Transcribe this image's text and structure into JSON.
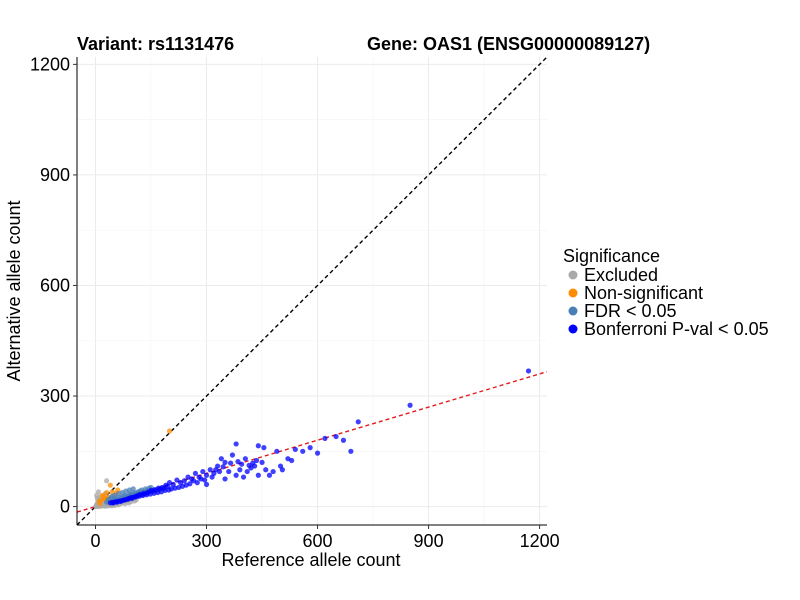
{
  "chart_data": {
    "type": "scatter",
    "title_left": "Variant: rs1131476",
    "title_right": "Gene: OAS1 (ENSG00000089127)",
    "xlabel": "Reference allele count",
    "ylabel": "Alternative allele count",
    "xlim": [
      -50,
      1220
    ],
    "ylim": [
      -50,
      1220
    ],
    "xticks": [
      0,
      300,
      600,
      900,
      1200
    ],
    "yticks": [
      0,
      300,
      600,
      900,
      1200
    ],
    "xtick_labels": [
      "0",
      "300",
      "600",
      "900",
      "1200"
    ],
    "ytick_labels": [
      "0",
      "300",
      "600",
      "900",
      "1200"
    ],
    "reference_lines": [
      {
        "name": "identity",
        "slope": 1.0,
        "intercept": 0,
        "color": "#000000",
        "style": "dashed"
      },
      {
        "name": "fit",
        "slope": 0.3,
        "intercept": 0,
        "color": "#e41a1c",
        "style": "dashed"
      }
    ],
    "legend": {
      "title": "Significance",
      "entries": [
        {
          "label": "Excluded",
          "color": "#a9a9a9"
        },
        {
          "label": "Non-significant",
          "color": "#ff8c00"
        },
        {
          "label": "FDR < 0.05",
          "color": "#4a7fb5"
        },
        {
          "label": "Bonferroni P-val < 0.05",
          "color": "#0000ff"
        }
      ]
    },
    "series": [
      {
        "name": "Excluded",
        "color": "#a9a9a9",
        "points": [
          [
            2,
            3
          ],
          [
            4,
            8
          ],
          [
            6,
            2
          ],
          [
            8,
            12
          ],
          [
            10,
            5
          ],
          [
            12,
            15
          ],
          [
            5,
            22
          ],
          [
            15,
            8
          ],
          [
            18,
            3
          ],
          [
            20,
            10
          ],
          [
            3,
            30
          ],
          [
            7,
            18
          ],
          [
            25,
            6
          ],
          [
            28,
            12
          ],
          [
            30,
            4
          ],
          [
            33,
            9
          ],
          [
            36,
            14
          ],
          [
            40,
            7
          ],
          [
            42,
            11
          ],
          [
            45,
            5
          ],
          [
            48,
            16
          ],
          [
            50,
            8
          ],
          [
            55,
            12
          ],
          [
            58,
            6
          ],
          [
            60,
            10
          ],
          [
            65,
            14
          ],
          [
            70,
            9
          ],
          [
            8,
            40
          ],
          [
            12,
            26
          ],
          [
            22,
            20
          ],
          [
            26,
            35
          ],
          [
            35,
            20
          ],
          [
            16,
            6
          ],
          [
            24,
            2
          ],
          [
            32,
            2
          ],
          [
            38,
            3
          ],
          [
            52,
            3
          ],
          [
            63,
            5
          ],
          [
            75,
            12
          ],
          [
            80,
            8
          ],
          [
            85,
            16
          ],
          [
            90,
            10
          ],
          [
            95,
            13
          ],
          [
            100,
            20
          ],
          [
            105,
            15
          ],
          [
            110,
            18
          ],
          [
            30,
            70
          ],
          [
            1,
            0
          ],
          [
            3,
            1
          ],
          [
            9,
            0
          ],
          [
            14,
            1
          ],
          [
            19,
            2
          ],
          [
            27,
            1
          ],
          [
            44,
            2
          ]
        ]
      },
      {
        "name": "Non-significant",
        "color": "#ff8c00",
        "points": [
          [
            200,
            205
          ],
          [
            40,
            58
          ],
          [
            30,
            38
          ],
          [
            22,
            28
          ],
          [
            15,
            18
          ],
          [
            10,
            14
          ],
          [
            35,
            25
          ],
          [
            28,
            22
          ],
          [
            45,
            40
          ],
          [
            55,
            36
          ],
          [
            60,
            45
          ],
          [
            18,
            30
          ],
          [
            12,
            8
          ],
          [
            25,
            20
          ]
        ]
      },
      {
        "name": "FDR < 0.05",
        "color": "#4a7fb5",
        "points": [
          [
            30,
            12
          ],
          [
            40,
            15
          ],
          [
            50,
            18
          ],
          [
            55,
            22
          ],
          [
            60,
            20
          ],
          [
            65,
            25
          ],
          [
            70,
            24
          ],
          [
            75,
            28
          ],
          [
            80,
            30
          ],
          [
            85,
            27
          ],
          [
            90,
            32
          ],
          [
            95,
            35
          ],
          [
            100,
            33
          ],
          [
            105,
            38
          ],
          [
            110,
            36
          ],
          [
            115,
            40
          ],
          [
            120,
            42
          ],
          [
            125,
            45
          ],
          [
            130,
            40
          ],
          [
            135,
            48
          ],
          [
            140,
            44
          ],
          [
            145,
            50
          ],
          [
            150,
            52
          ],
          [
            45,
            28
          ],
          [
            52,
            30
          ],
          [
            62,
            35
          ],
          [
            72,
            38
          ],
          [
            82,
            42
          ],
          [
            92,
            45
          ],
          [
            102,
            48
          ],
          [
            35,
            20
          ],
          [
            42,
            24
          ],
          [
            58,
            15
          ],
          [
            68,
            18
          ],
          [
            78,
            22
          ],
          [
            88,
            26
          ],
          [
            98,
            30
          ],
          [
            108,
            32
          ],
          [
            118,
            35
          ],
          [
            128,
            38
          ],
          [
            138,
            42
          ]
        ]
      },
      {
        "name": "Bonferroni P-val < 0.05",
        "color": "#0000ff",
        "points": [
          [
            1170,
            368
          ],
          [
            850,
            275
          ],
          [
            710,
            230
          ],
          [
            650,
            190
          ],
          [
            670,
            180
          ],
          [
            620,
            185
          ],
          [
            580,
            160
          ],
          [
            560,
            150
          ],
          [
            540,
            155
          ],
          [
            520,
            130
          ],
          [
            500,
            110
          ],
          [
            480,
            95
          ],
          [
            460,
            100
          ],
          [
            440,
            85
          ],
          [
            430,
            110
          ],
          [
            400,
            80
          ],
          [
            390,
            100
          ],
          [
            380,
            85
          ],
          [
            360,
            95
          ],
          [
            350,
            75
          ],
          [
            340,
            130
          ],
          [
            330,
            110
          ],
          [
            320,
            90
          ],
          [
            310,
            100
          ],
          [
            300,
            85
          ],
          [
            290,
            95
          ],
          [
            280,
            80
          ],
          [
            270,
            90
          ],
          [
            260,
            75
          ],
          [
            250,
            80
          ],
          [
            240,
            70
          ],
          [
            230,
            65
          ],
          [
            220,
            72
          ],
          [
            210,
            60
          ],
          [
            200,
            65
          ],
          [
            195,
            55
          ],
          [
            190,
            58
          ],
          [
            185,
            50
          ],
          [
            180,
            52
          ],
          [
            175,
            48
          ],
          [
            170,
            50
          ],
          [
            165,
            45
          ],
          [
            160,
            46
          ],
          [
            155,
            42
          ],
          [
            150,
            44
          ],
          [
            145,
            40
          ],
          [
            140,
            38
          ],
          [
            135,
            35
          ],
          [
            130,
            36
          ],
          [
            125,
            32
          ],
          [
            120,
            33
          ],
          [
            115,
            30
          ],
          [
            110,
            28
          ],
          [
            105,
            26
          ],
          [
            100,
            25
          ],
          [
            95,
            24
          ],
          [
            90,
            22
          ],
          [
            85,
            20
          ],
          [
            80,
            18
          ],
          [
            75,
            17
          ],
          [
            70,
            16
          ],
          [
            65,
            15
          ],
          [
            60,
            14
          ],
          [
            55,
            13
          ],
          [
            50,
            12
          ],
          [
            45,
            11
          ],
          [
            40,
            10
          ],
          [
            370,
            140
          ],
          [
            410,
            95
          ],
          [
            450,
            120
          ],
          [
            470,
            85
          ],
          [
            490,
            150
          ],
          [
            505,
            100
          ],
          [
            530,
            125
          ],
          [
            600,
            145
          ],
          [
            690,
            150
          ],
          [
            440,
            165
          ],
          [
            455,
            160
          ],
          [
            380,
            170
          ],
          [
            300,
            60
          ],
          [
            285,
            75
          ],
          [
            275,
            65
          ],
          [
            265,
            70
          ],
          [
            255,
            62
          ],
          [
            245,
            58
          ],
          [
            235,
            55
          ],
          [
            225,
            52
          ],
          [
            215,
            50
          ],
          [
            205,
            48
          ],
          [
            198,
            45
          ],
          [
            188,
            44
          ],
          [
            178,
            40
          ],
          [
            168,
            38
          ],
          [
            158,
            36
          ],
          [
            148,
            34
          ],
          [
            138,
            32
          ],
          [
            128,
            30
          ],
          [
            118,
            28
          ],
          [
            108,
            26
          ],
          [
            98,
            22
          ],
          [
            88,
            20
          ],
          [
            78,
            18
          ],
          [
            68,
            14
          ],
          [
            58,
            12
          ],
          [
            48,
            10
          ],
          [
            350,
            120
          ],
          [
            420,
            105
          ],
          [
            395,
            115
          ],
          [
            335,
            95
          ],
          [
            315,
            80
          ],
          [
            295,
            72
          ],
          [
            325,
            100
          ],
          [
            345,
            108
          ],
          [
            365,
            118
          ],
          [
            385,
            122
          ],
          [
            405,
            130
          ],
          [
            415,
            112
          ],
          [
            425,
            118
          ],
          [
            435,
            125
          ]
        ]
      }
    ]
  }
}
